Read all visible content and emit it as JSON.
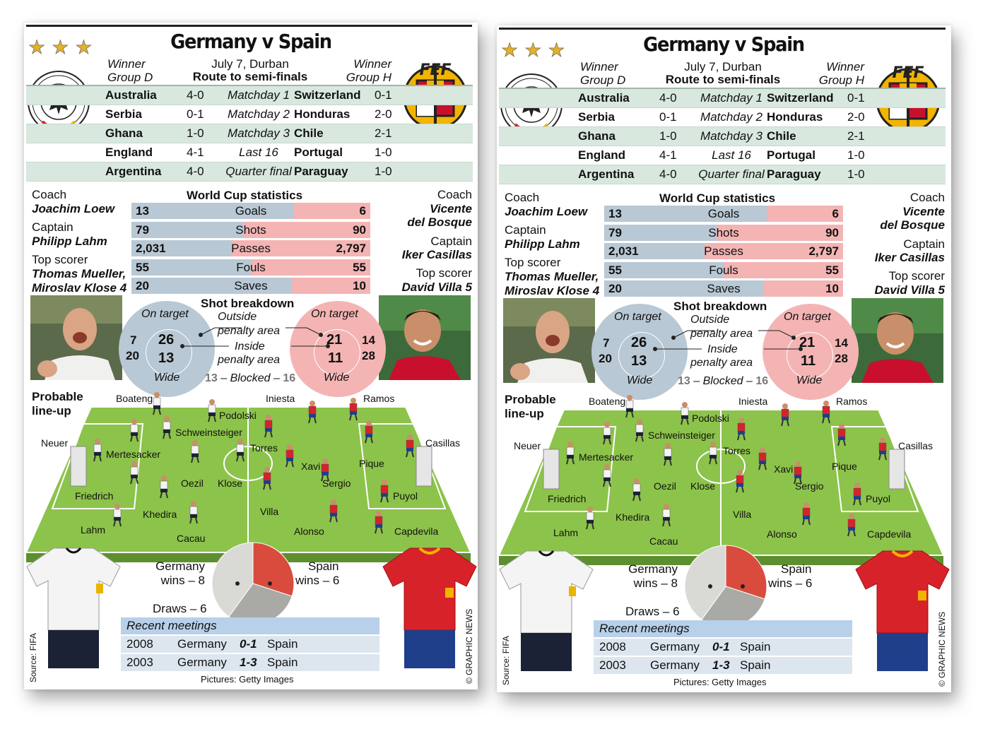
{
  "title": "Germany v Spain",
  "date": "July 7, Durban",
  "route_title": "Route to semi-finals",
  "germany_winner": [
    "Winner",
    "Group D"
  ],
  "spain_winner": [
    "Winner",
    "Group H"
  ],
  "route": [
    {
      "g_team": "Australia",
      "g_score": "4-0",
      "stage": "Matchday 1",
      "s_team": "Switzerland",
      "s_score": "0-1"
    },
    {
      "g_team": "Serbia",
      "g_score": "0-1",
      "stage": "Matchday 2",
      "s_team": "Honduras",
      "s_score": "2-0"
    },
    {
      "g_team": "Ghana",
      "g_score": "1-0",
      "stage": "Matchday 3",
      "s_team": "Chile",
      "s_score": "2-1"
    },
    {
      "g_team": "England",
      "g_score": "4-1",
      "stage": "Last 16",
      "s_team": "Portugal",
      "s_score": "1-0"
    },
    {
      "g_team": "Argentina",
      "g_score": "4-0",
      "stage": "Quarter final",
      "s_team": "Paraguay",
      "s_score": "1-0"
    }
  ],
  "stats_title": "World Cup statistics",
  "stats": [
    {
      "name": "Goals",
      "germany": "13",
      "spain": "6",
      "g_frac": 0.68
    },
    {
      "name": "Shots",
      "germany": "79",
      "spain": "90",
      "g_frac": 0.47
    },
    {
      "name": "Passes",
      "germany": "2,031",
      "spain": "2,797",
      "g_frac": 0.42
    },
    {
      "name": "Fouls",
      "germany": "55",
      "spain": "55",
      "g_frac": 0.5
    },
    {
      "name": "Saves",
      "germany": "20",
      "spain": "10",
      "g_frac": 0.67
    }
  ],
  "germany": {
    "coach_label": "Coach",
    "coach": "Joachim Loew",
    "captain_label": "Captain",
    "captain": "Philipp Lahm",
    "scorer_label": "Top scorer",
    "scorer_1": "Thomas Mueller,",
    "scorer_2": "Miroslav Klose 4"
  },
  "spain": {
    "coach_label": "Coach",
    "coach_1": "Vicente",
    "coach_2": "del Bosque",
    "captain_label": "Captain",
    "captain": "Iker Casillas",
    "scorer_label": "Top scorer",
    "scorer": "David Villa 5"
  },
  "shots": {
    "title": "Shot breakdown",
    "on_target": "On target",
    "outside_1": "Outside",
    "outside_2": "penalty area",
    "inside_1": "Inside",
    "inside_2": "penalty area",
    "wide": "Wide",
    "germany": {
      "on_target_total": "26",
      "inside": "13",
      "outside": "7",
      "wide": "20"
    },
    "spain": {
      "on_target_total": "21",
      "inside": "11",
      "outside": "14",
      "wide": "28"
    },
    "blocked_g": "13",
    "blocked_label": "– Blocked –",
    "blocked_s": "16"
  },
  "lineup_title_1": "Probable",
  "lineup_title_2": "line-up",
  "players": [
    "Boateng",
    "Podolski",
    "Schweinsteiger",
    "Neuer",
    "Mertesacker",
    "Oezil",
    "Klose",
    "Friedrich",
    "Khedira",
    "Lahm",
    "Cacau",
    "Iniesta",
    "Ramos",
    "Torres",
    "Casillas",
    "Xavi",
    "Pique",
    "Sergio",
    "Puyol",
    "Villa",
    "Alonso",
    "Capdevila"
  ],
  "record": {
    "germany_label": "Germany",
    "germany_wins": "wins – 8",
    "spain_label": "Spain",
    "spain_wins": "wins – 6",
    "draws": "Draws – 6",
    "slices": [
      {
        "name": "Germany wins",
        "value": 8,
        "color": "#d9d9d6"
      },
      {
        "name": "Spain wins",
        "value": 6,
        "color": "#d94c3d"
      },
      {
        "name": "Draws",
        "value": 6,
        "color": "#a9a9a6"
      }
    ]
  },
  "meetings_title": "Recent meetings",
  "meetings": [
    {
      "year": "2008",
      "home": "Germany",
      "score": "0-1",
      "away": "Spain"
    },
    {
      "year": "2003",
      "home": "Germany",
      "score": "1-3",
      "away": "Spain"
    }
  ],
  "source": "Source: FIFA",
  "credit": "© GRAPHIC NEWS",
  "pictures": "Pictures: Getty Images",
  "colors": {
    "germany_bar": "#b8c8d4",
    "spain_bar": "#f4b4b4",
    "route_shade": "#d8e8df",
    "pitch": "#8cc34a",
    "star": "#e2b12b"
  }
}
